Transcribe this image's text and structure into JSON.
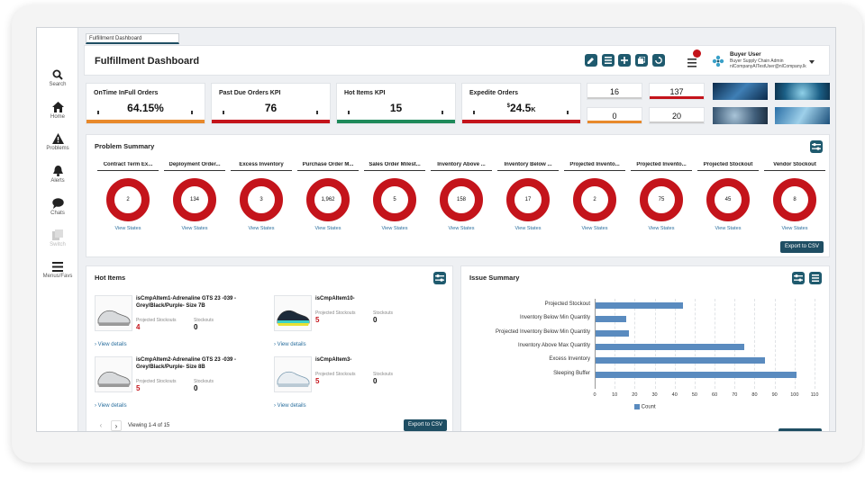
{
  "tab": {
    "label": "Fulfillment Dashboard"
  },
  "header": {
    "title": "Fulfillment Dashboard",
    "user_name": "Buyer User",
    "user_role": "Buyer Supply Chain Admin",
    "user_email": "nlCompanyAITestUser@nlCompany.lk"
  },
  "sidebar": {
    "items": [
      {
        "label": "Search",
        "icon": "search-icon"
      },
      {
        "label": "Home",
        "icon": "home-icon"
      },
      {
        "label": "Problems",
        "icon": "warning-icon"
      },
      {
        "label": "Alerts",
        "icon": "bell-icon"
      },
      {
        "label": "Chats",
        "icon": "chat-icon"
      },
      {
        "label": "Switch",
        "icon": "switch-icon"
      },
      {
        "label": "Menus/Favs",
        "icon": "menu-icon"
      }
    ]
  },
  "kpis": [
    {
      "title": "OnTime InFull Orders",
      "value": "64.15%",
      "color": "#e8892b"
    },
    {
      "title": "Past Due Orders KPI",
      "value": "76",
      "color": "#c4141b"
    },
    {
      "title": "Hot Items KPI",
      "value": "15",
      "color": "#1e8a5a"
    },
    {
      "title": "Expedite Orders",
      "value": "24.5",
      "prefix": "$",
      "suffix": "K",
      "color": "#c4141b"
    }
  ],
  "small_kpis": [
    {
      "value": "16",
      "color": "#cccccc"
    },
    {
      "value": "137",
      "color": "#c4141b"
    },
    {
      "value": "0",
      "color": "#e8892b"
    },
    {
      "value": "20",
      "color": "#cccccc"
    }
  ],
  "problem_summary": {
    "title": "Problem Summary",
    "link_label": "View States",
    "export_label": "Export to CSV",
    "items": [
      {
        "label": "Contract Term Ex...",
        "value": "2"
      },
      {
        "label": "Deployment Order...",
        "value": "134"
      },
      {
        "label": "Excess Inventory",
        "value": "3"
      },
      {
        "label": "Purchase Order M...",
        "value": "1,962"
      },
      {
        "label": "Sales Order Milest...",
        "value": "5"
      },
      {
        "label": "Inventory Above ...",
        "value": "158"
      },
      {
        "label": "Inventory Below ...",
        "value": "17"
      },
      {
        "label": "Projected Invento...",
        "value": "2"
      },
      {
        "label": "Projected Invento...",
        "value": "75"
      },
      {
        "label": "Projected Stockout",
        "value": "45"
      },
      {
        "label": "Vendor Stockout",
        "value": "8"
      }
    ]
  },
  "hot_items": {
    "title": "Hot Items",
    "col1_label": "Projected Stockouts",
    "col2_label": "Stockouts",
    "link_label": "View details",
    "pagination": "Viewing 1-4 of 15",
    "export_label": "Export to CSV",
    "items": [
      {
        "name": "isCmpAItem1-Adrenaline GTS 23 -039 - Grey/Black/Purple- Size 7B",
        "projected": "4",
        "stockouts": "0"
      },
      {
        "name": "isCmpAItem10-",
        "projected": "5",
        "stockouts": "0"
      },
      {
        "name": "isCmpAItem2-Adrenaline GTS 23 -039 - Grey/Black/Purple- Size 8B",
        "projected": "5",
        "stockouts": "0"
      },
      {
        "name": "isCmpAItem3-",
        "projected": "5",
        "stockouts": "0"
      }
    ]
  },
  "issue_summary": {
    "title": "Issue Summary",
    "legend": "Count"
  },
  "chart_data": {
    "type": "bar",
    "orientation": "horizontal",
    "categories": [
      "Projected Stockout",
      "Inventory Below Min Quantity",
      "Projected Inventory Below Min Quantity",
      "Inventory Above Max Quantity",
      "Excess Inventory",
      "Sleeping Buffer"
    ],
    "series": [
      {
        "name": "Count",
        "values": [
          44,
          16,
          17,
          75,
          85,
          101
        ]
      }
    ],
    "xlim": [
      0,
      110
    ],
    "xticks": [
      "0",
      "10",
      "20",
      "30",
      "40",
      "50",
      "60",
      "70",
      "80",
      "90",
      "100",
      "110"
    ],
    "grid": true,
    "legend": "bottom",
    "color": "#5a8bbf"
  }
}
